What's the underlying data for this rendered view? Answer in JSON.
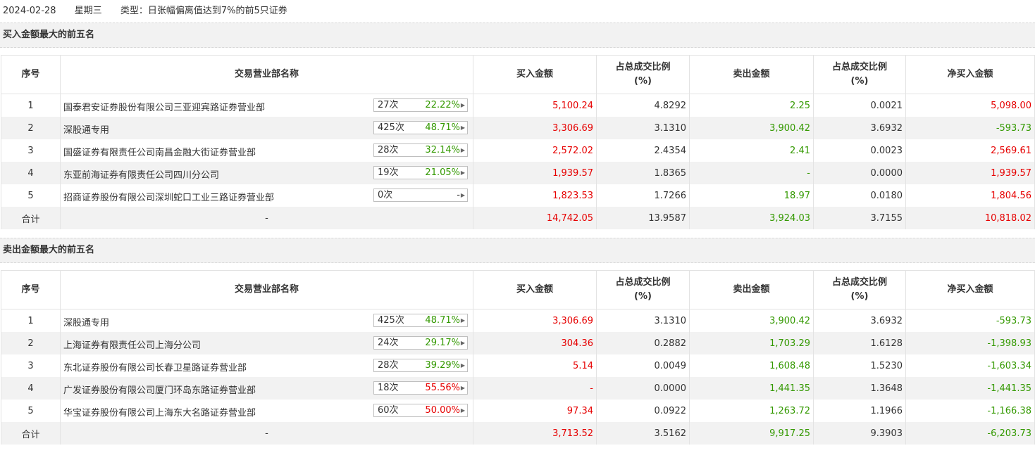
{
  "header": {
    "date": "2024-02-28",
    "weekday": "星期三",
    "type": "类型：日张幅偏离值达到7%的前5只证券"
  },
  "columns": {
    "seq": "序号",
    "name": "交易营业部名称",
    "buy": "买入金额",
    "ratio_line1": "占总成交比例",
    "ratio_line2": "(%)",
    "sell": "卖出金额",
    "net": "净买入金额"
  },
  "buy_table": {
    "title": "买入金额最大的前五名",
    "rows": [
      {
        "seq": "1",
        "name": "国泰君安证券股份有限公司三亚迎宾路证券营业部",
        "count": "27次",
        "pct": "22.22%",
        "pct_color": "green",
        "buy": "5,100.24",
        "buy_ratio": "4.8292",
        "sell": "2.25",
        "sell_ratio": "0.0021",
        "net": "5,098.00",
        "net_color": "red"
      },
      {
        "seq": "2",
        "name": "深股通专用",
        "count": "425次",
        "pct": "48.71%",
        "pct_color": "green",
        "buy": "3,306.69",
        "buy_ratio": "3.1310",
        "sell": "3,900.42",
        "sell_ratio": "3.6932",
        "net": "-593.73",
        "net_color": "green"
      },
      {
        "seq": "3",
        "name": "国盛证券有限责任公司南昌金融大街证券营业部",
        "count": "28次",
        "pct": "32.14%",
        "pct_color": "green",
        "buy": "2,572.02",
        "buy_ratio": "2.4354",
        "sell": "2.41",
        "sell_ratio": "0.0023",
        "net": "2,569.61",
        "net_color": "red"
      },
      {
        "seq": "4",
        "name": "东亚前海证券有限责任公司四川分公司",
        "count": "19次",
        "pct": "21.05%",
        "pct_color": "green",
        "buy": "1,939.57",
        "buy_ratio": "1.8365",
        "sell": "-",
        "sell_ratio": "0.0000",
        "net": "1,939.57",
        "net_color": "red"
      },
      {
        "seq": "5",
        "name": "招商证券股份有限公司深圳蛇口工业三路证券营业部",
        "count": "0次",
        "pct": "-",
        "pct_color": "dark",
        "buy": "1,823.53",
        "buy_ratio": "1.7266",
        "sell": "18.97",
        "sell_ratio": "0.0180",
        "net": "1,804.56",
        "net_color": "red"
      }
    ],
    "total": {
      "label": "合计",
      "name": "-",
      "buy": "14,742.05",
      "buy_ratio": "13.9587",
      "sell": "3,924.03",
      "sell_ratio": "3.7155",
      "net": "10,818.02",
      "net_color": "red"
    }
  },
  "sell_table": {
    "title": "卖出金额最大的前五名",
    "rows": [
      {
        "seq": "1",
        "name": "深股通专用",
        "count": "425次",
        "pct": "48.71%",
        "pct_color": "green",
        "buy": "3,306.69",
        "buy_ratio": "3.1310",
        "sell": "3,900.42",
        "sell_ratio": "3.6932",
        "net": "-593.73",
        "net_color": "green"
      },
      {
        "seq": "2",
        "name": "上海证券有限责任公司上海分公司",
        "count": "24次",
        "pct": "29.17%",
        "pct_color": "green",
        "buy": "304.36",
        "buy_ratio": "0.2882",
        "sell": "1,703.29",
        "sell_ratio": "1.6128",
        "net": "-1,398.93",
        "net_color": "green"
      },
      {
        "seq": "3",
        "name": "东北证券股份有限公司长春卫星路证券营业部",
        "count": "28次",
        "pct": "39.29%",
        "pct_color": "green",
        "buy": "5.14",
        "buy_ratio": "0.0049",
        "sell": "1,608.48",
        "sell_ratio": "1.5230",
        "net": "-1,603.34",
        "net_color": "green"
      },
      {
        "seq": "4",
        "name": "广发证券股份有限公司厦门环岛东路证券营业部",
        "count": "18次",
        "pct": "55.56%",
        "pct_color": "red",
        "buy": "-",
        "buy_ratio": "0.0000",
        "sell": "1,441.35",
        "sell_ratio": "1.3648",
        "net": "-1,441.35",
        "net_color": "green"
      },
      {
        "seq": "5",
        "name": "华宝证券股份有限公司上海东大名路证券营业部",
        "count": "60次",
        "pct": "50.00%",
        "pct_color": "red",
        "buy": "97.34",
        "buy_ratio": "0.0922",
        "sell": "1,263.72",
        "sell_ratio": "1.1966",
        "net": "-1,166.38",
        "net_color": "green"
      }
    ],
    "total": {
      "label": "合计",
      "name": "-",
      "buy": "3,713.52",
      "buy_ratio": "3.5162",
      "sell": "9,917.25",
      "sell_ratio": "9.3903",
      "net": "-6,203.73",
      "net_color": "green"
    }
  },
  "colors": {
    "red": "#e60000",
    "green": "#339900",
    "dark": "#333333",
    "stripe": "#f2f2f2"
  },
  "icons": {
    "expand": "triangle-right-icon"
  }
}
